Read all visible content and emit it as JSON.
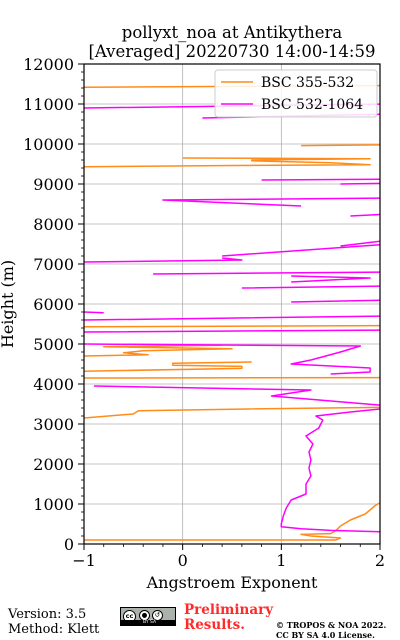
{
  "chart_data": {
    "type": "line",
    "title": [
      "pollyxt_noa at Antikythera",
      "[Averaged] 20220730 14:00-14:59"
    ],
    "xlabel": "Angstroem Exponent",
    "ylabel": "Height (m)",
    "xlim": [
      -1,
      2
    ],
    "ylim": [
      0,
      12000
    ],
    "xticks": [
      -1,
      0,
      1,
      2
    ],
    "xtick_labels": [
      "−1",
      "0",
      "1",
      "2"
    ],
    "yticks": [
      0,
      1000,
      2000,
      3000,
      4000,
      5000,
      6000,
      7000,
      8000,
      9000,
      10000,
      11000,
      12000
    ],
    "grid": true,
    "legend": "upper right",
    "series": [
      {
        "name": "BSC 355-532",
        "color": "#ff8c1a",
        "points": [
          [
            -1,
            100
          ],
          [
            1.55,
            100
          ],
          [
            1.6,
            150
          ],
          [
            1.3,
            200
          ],
          [
            1.2,
            240
          ],
          [
            1.5,
            260
          ],
          [
            1.55,
            330
          ],
          [
            1.6,
            450
          ],
          [
            1.7,
            600
          ],
          [
            1.85,
            750
          ],
          [
            1.9,
            850
          ],
          [
            1.95,
            960
          ],
          [
            2.0,
            1030
          ],
          [
            2.1,
            1060
          ],
          [
            null,
            null
          ],
          [
            -1,
            3150
          ],
          [
            -0.5,
            3250
          ],
          [
            -0.45,
            3330
          ],
          [
            0.5,
            3370
          ],
          [
            2.1,
            3420
          ],
          [
            null,
            null
          ],
          [
            -1,
            4150
          ],
          [
            2.1,
            4160
          ],
          [
            null,
            null
          ],
          [
            -1,
            4320
          ],
          [
            0.6,
            4390
          ],
          [
            0.6,
            4440
          ],
          [
            -0.1,
            4470
          ],
          [
            -0.1,
            4520
          ],
          [
            0.7,
            4550
          ],
          [
            null,
            null
          ],
          [
            -1,
            4700
          ],
          [
            -0.35,
            4730
          ],
          [
            -0.6,
            4780
          ],
          [
            -0.4,
            4830
          ],
          [
            0.5,
            4880
          ],
          [
            -0.8,
            4930
          ],
          [
            0.4,
            4970
          ],
          [
            null,
            null
          ],
          [
            -1,
            5430
          ],
          [
            2.1,
            5460
          ],
          [
            null,
            null
          ],
          [
            -1,
            9430
          ],
          [
            0.35,
            9460
          ],
          [
            1.9,
            9480
          ],
          [
            1.5,
            9530
          ],
          [
            0.7,
            9580
          ],
          [
            0.7,
            9600
          ],
          [
            1.9,
            9630
          ],
          [
            0,
            9650
          ],
          [
            null,
            null
          ],
          [
            1.2,
            9960
          ],
          [
            2.1,
            9980
          ],
          [
            null,
            null
          ],
          [
            -1,
            11420
          ],
          [
            2.1,
            11460
          ]
        ]
      },
      {
        "name": "BSC 532-1064",
        "color": "#ff00ff",
        "points": [
          [
            2.1,
            300
          ],
          [
            1.5,
            340
          ],
          [
            1.2,
            380
          ],
          [
            1.0,
            430
          ],
          [
            1.0,
            500
          ],
          [
            1.02,
            700
          ],
          [
            1.05,
            900
          ],
          [
            1.1,
            1100
          ],
          [
            1.25,
            1250
          ],
          [
            1.25,
            1500
          ],
          [
            1.3,
            1700
          ],
          [
            1.28,
            1900
          ],
          [
            1.3,
            2100
          ],
          [
            1.28,
            2300
          ],
          [
            1.32,
            2500
          ],
          [
            1.25,
            2700
          ],
          [
            1.38,
            2900
          ],
          [
            1.42,
            3100
          ],
          [
            1.35,
            3200
          ],
          [
            1.7,
            3300
          ],
          [
            2.1,
            3400
          ],
          [
            null,
            null
          ],
          [
            2.1,
            3450
          ],
          [
            0.9,
            3700
          ],
          [
            1.3,
            3850
          ],
          [
            -0.9,
            3950
          ],
          [
            null,
            null
          ],
          [
            1.5,
            4250
          ],
          [
            1.9,
            4300
          ],
          [
            1.9,
            4400
          ],
          [
            1.1,
            4500
          ],
          [
            1.3,
            4600
          ],
          [
            1.6,
            4800
          ],
          [
            1.8,
            4950
          ],
          [
            -1,
            5000
          ],
          [
            null,
            null
          ],
          [
            -1,
            5300
          ],
          [
            2.1,
            5350
          ],
          [
            null,
            null
          ],
          [
            -1,
            5600
          ],
          [
            2.1,
            5700
          ],
          [
            null,
            null
          ],
          [
            -0.8,
            5780
          ],
          [
            -1,
            5800
          ],
          [
            null,
            null
          ],
          [
            1.1,
            6050
          ],
          [
            2.1,
            6100
          ],
          [
            null,
            null
          ],
          [
            0.6,
            6400
          ],
          [
            2.1,
            6450
          ],
          [
            null,
            null
          ],
          [
            1.1,
            6550
          ],
          [
            1.9,
            6650
          ],
          [
            1.1,
            6700
          ],
          [
            null,
            null
          ],
          [
            -0.3,
            6750
          ],
          [
            2.1,
            6800
          ],
          [
            null,
            null
          ],
          [
            -1,
            7050
          ],
          [
            0.6,
            7100
          ],
          [
            0.4,
            7150
          ],
          [
            null,
            null
          ],
          [
            0.4,
            7200
          ],
          [
            2.1,
            7500
          ],
          [
            null,
            null
          ],
          [
            1.6,
            7450
          ],
          [
            2.1,
            7600
          ],
          [
            null,
            null
          ],
          [
            1.7,
            8200
          ],
          [
            2.1,
            8250
          ],
          [
            null,
            null
          ],
          [
            1.2,
            8450
          ],
          [
            -0.2,
            8600
          ],
          [
            2.1,
            8650
          ],
          [
            null,
            null
          ],
          [
            1.6,
            9000
          ],
          [
            2.1,
            9020
          ],
          [
            null,
            null
          ],
          [
            0.8,
            9100
          ],
          [
            2.1,
            9120
          ],
          [
            null,
            null
          ],
          [
            0.2,
            10650
          ],
          [
            2.1,
            10750
          ],
          [
            null,
            null
          ],
          [
            -1,
            10900
          ],
          [
            2.1,
            11000
          ]
        ]
      }
    ]
  },
  "footer": {
    "version": "Version: 3.5",
    "method": "Method: Klett",
    "preliminary_line1": "Preliminary",
    "preliminary_line2": "Results.",
    "copyright_line1": "© TROPOS & NOA 2022.",
    "copyright_line2": "CC BY SA 4.0 License.",
    "cc_badge": "cc-by-sa-icon",
    "cc_badge_text": "cc",
    "cc_badge_strip": "BY SA"
  }
}
